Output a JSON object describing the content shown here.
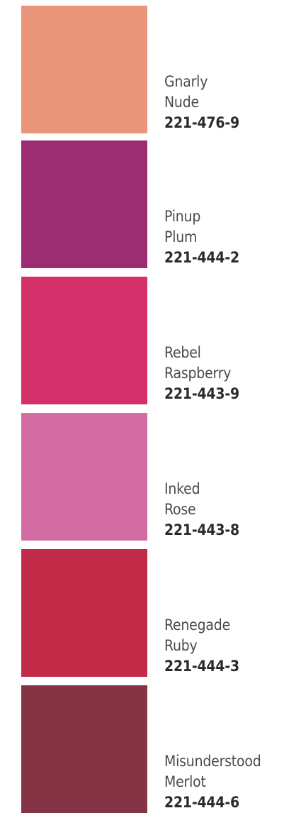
{
  "swatches": [
    {
      "name_line1": "Gnarly",
      "name_line2": "Nude",
      "code": "221-476-9",
      "color": "#E8957A"
    },
    {
      "name_line1": "Pinup",
      "name_line2": "Plum",
      "code": "221-444-2",
      "color": "#9C2D72"
    },
    {
      "name_line1": "Rebel",
      "name_line2": "Raspberry",
      "code": "221-443-9",
      "color": "#D5306A"
    },
    {
      "name_line1": "Inked",
      "name_line2": "Rose",
      "code": "221-443-8",
      "color": "#D26CA2"
    },
    {
      "name_line1": "Renegade",
      "name_line2": "Ruby",
      "code": "221-444-3",
      "color": "#C22B47"
    },
    {
      "name_line1": "Misunderstood",
      "name_line2": "Merlot",
      "code": "221-444-6",
      "color": "#853446"
    }
  ]
}
